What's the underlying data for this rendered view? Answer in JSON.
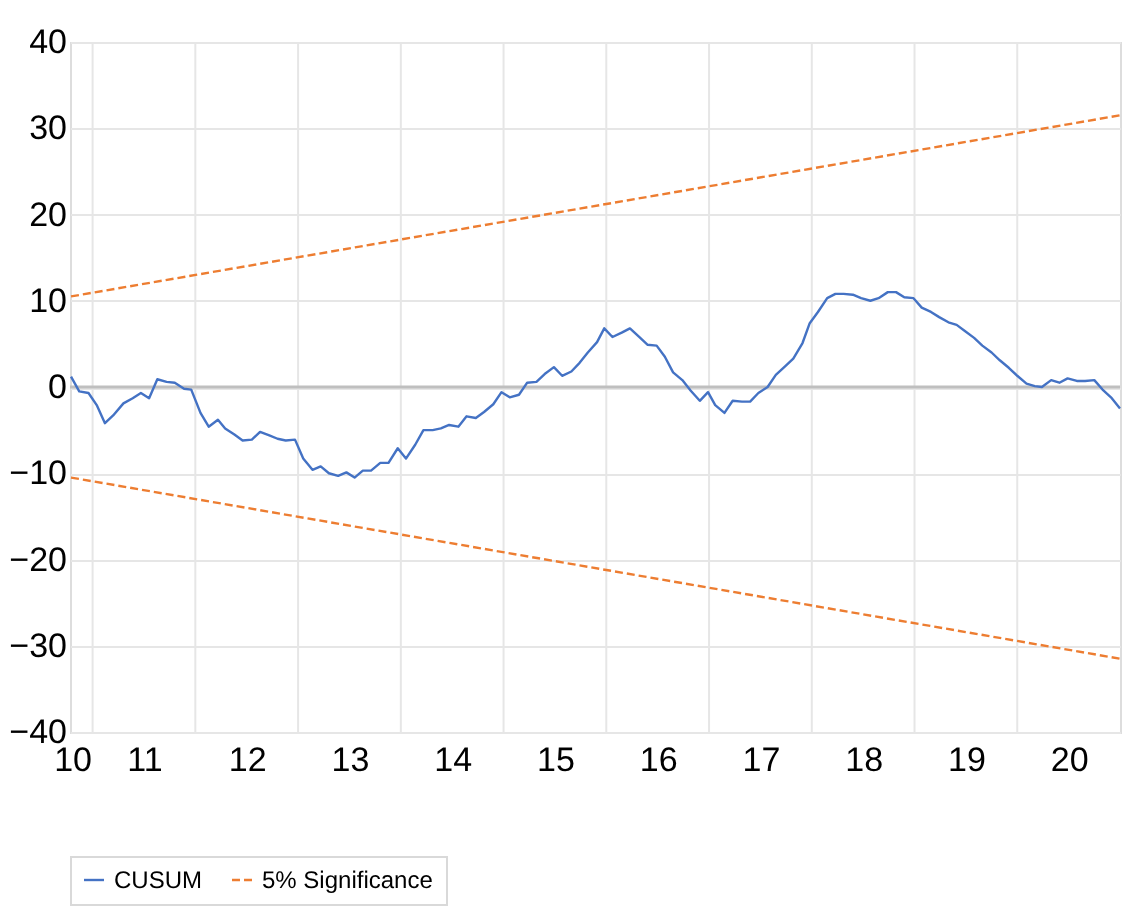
{
  "chart_data": {
    "type": "line",
    "xlim": [
      10.28,
      20.5
    ],
    "ylim": [
      -40,
      40
    ],
    "yticks": [
      -40,
      -30,
      -20,
      -10,
      0,
      10,
      20,
      30,
      40
    ],
    "xticks": [
      {
        "value": 10.3,
        "label": "10"
      },
      11,
      12,
      13,
      14,
      15,
      16,
      17,
      18,
      19,
      20,
      {
        "value": 10.5,
        "label": null
      },
      {
        "value": 11.5,
        "label": null
      },
      {
        "value": 12.5,
        "label": null
      },
      {
        "value": 13.5,
        "label": null
      },
      {
        "value": 14.5,
        "label": null
      },
      {
        "value": 15.5,
        "label": null
      },
      {
        "value": 16.5,
        "label": null
      },
      {
        "value": 17.5,
        "label": null
      },
      {
        "value": 18.5,
        "label": null
      },
      {
        "value": 19.5,
        "label": null
      }
    ],
    "grid": true,
    "legend": "bottom",
    "ref_lines": [
      {
        "axis": "y",
        "value": 0,
        "color": "#bfbfbf"
      }
    ],
    "series": [
      {
        "name": "CUSUM",
        "color": "#4472c4",
        "line_style": "solid",
        "x": [
          10.29,
          10.37,
          10.46,
          10.54,
          10.62,
          10.7,
          10.8,
          10.89,
          10.97,
          11.05,
          11.13,
          11.22,
          11.3,
          11.39,
          11.46,
          11.55,
          11.63,
          11.72,
          11.79,
          11.88,
          11.96,
          12.05,
          12.13,
          12.22,
          12.3,
          12.38,
          12.47,
          12.55,
          12.64,
          12.72,
          12.8,
          12.89,
          12.97,
          13.05,
          13.13,
          13.21,
          13.3,
          13.38,
          13.47,
          13.55,
          13.64,
          13.72,
          13.81,
          13.89,
          13.97,
          14.06,
          14.14,
          14.23,
          14.31,
          14.4,
          14.48,
          14.56,
          14.65,
          14.73,
          14.82,
          14.9,
          14.99,
          15.07,
          15.16,
          15.24,
          15.32,
          15.41,
          15.48,
          15.56,
          15.65,
          15.73,
          15.82,
          15.9,
          15.99,
          16.07,
          16.15,
          16.24,
          16.32,
          16.41,
          16.49,
          16.56,
          16.65,
          16.73,
          16.82,
          16.9,
          16.98,
          17.07,
          17.15,
          17.24,
          17.32,
          17.41,
          17.48,
          17.56,
          17.65,
          17.73,
          17.81,
          17.9,
          17.98,
          18.07,
          18.15,
          18.24,
          18.32,
          18.4,
          18.49,
          18.57,
          18.66,
          18.74,
          18.83,
          18.91,
          18.99,
          19.08,
          19.16,
          19.25,
          19.33,
          19.42,
          19.5,
          19.59,
          19.67,
          19.74,
          19.83,
          19.91,
          19.99,
          20.08,
          20.16,
          20.25,
          20.33,
          20.42,
          20.5
        ],
        "values": [
          1.2,
          -0.5,
          -0.7,
          -2.1,
          -4.2,
          -3.3,
          -1.9,
          -1.3,
          -0.7,
          -1.3,
          0.9,
          0.6,
          0.5,
          -0.2,
          -0.3,
          -3.0,
          -4.6,
          -3.8,
          -4.8,
          -5.5,
          -6.2,
          -6.1,
          -5.2,
          -5.6,
          -6.0,
          -6.2,
          -6.1,
          -8.3,
          -9.6,
          -9.2,
          -10.0,
          -10.3,
          -9.9,
          -10.5,
          -9.7,
          -9.7,
          -8.8,
          -8.8,
          -7.1,
          -8.3,
          -6.7,
          -5.0,
          -5.0,
          -4.8,
          -4.4,
          -4.6,
          -3.4,
          -3.6,
          -2.9,
          -2.0,
          -0.6,
          -1.2,
          -0.9,
          0.5,
          0.6,
          1.5,
          2.3,
          1.3,
          1.8,
          2.8,
          4.0,
          5.2,
          6.8,
          5.8,
          6.3,
          6.8,
          5.8,
          4.9,
          4.8,
          3.5,
          1.7,
          0.8,
          -0.4,
          -1.6,
          -0.6,
          -2.1,
          -3.0,
          -1.6,
          -1.7,
          -1.7,
          -0.7,
          0.0,
          1.4,
          2.4,
          3.3,
          5.1,
          7.4,
          8.7,
          10.3,
          10.8,
          10.8,
          10.7,
          10.3,
          10.0,
          10.3,
          11.0,
          11.0,
          10.4,
          10.3,
          9.2,
          8.7,
          8.1,
          7.5,
          7.2,
          6.5,
          5.7,
          4.8,
          4.0,
          3.1,
          2.2,
          1.3,
          0.4,
          0.1,
          0.0,
          0.8,
          0.5,
          1.0,
          0.7,
          0.7,
          0.8,
          -0.3,
          -1.3,
          -2.5
        ]
      },
      {
        "name": "5% Significance",
        "color": "#ed7d31",
        "line_style": "dashed",
        "x": [
          10.29,
          20.5
        ],
        "values": [
          10.5,
          31.5
        ]
      },
      {
        "color": "#ed7d31",
        "line_style": "dashed",
        "x": [
          10.29,
          20.5
        ],
        "values": [
          -10.5,
          -31.5
        ]
      }
    ]
  }
}
